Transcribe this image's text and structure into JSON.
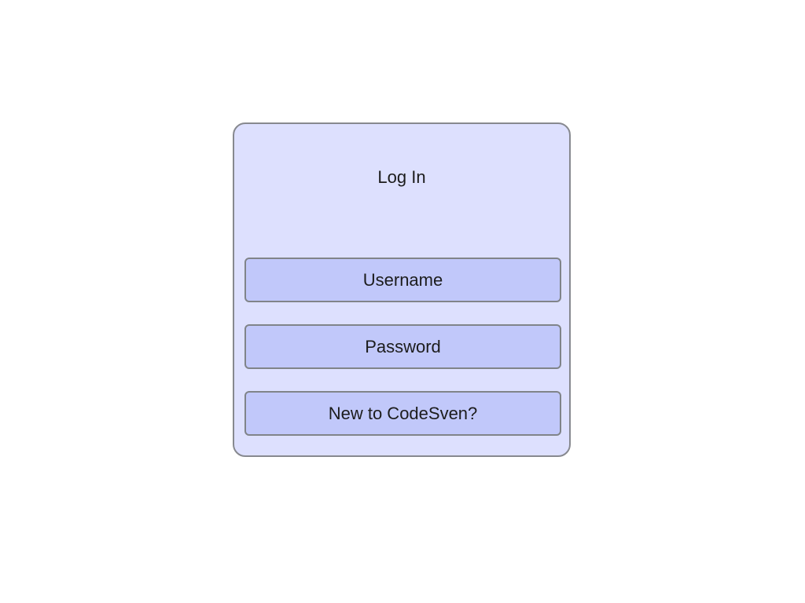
{
  "login": {
    "title": "Log In",
    "username_label": "Username",
    "password_label": "Password",
    "signup_label": "New to CodeSven?"
  },
  "colors": {
    "card_background": "#dde0fe",
    "field_background": "#c1c8fa",
    "border": "#87898f",
    "text": "#1c1c1c"
  }
}
